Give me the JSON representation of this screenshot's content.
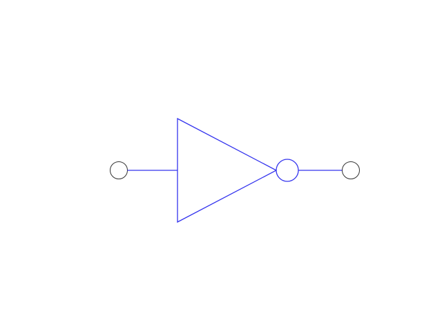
{
  "diagram": {
    "type": "logic-gate",
    "gate": "NOT",
    "components": [
      {
        "id": "input-terminal",
        "kind": "terminal"
      },
      {
        "id": "input-wire",
        "kind": "wire"
      },
      {
        "id": "inverter-triangle",
        "kind": "buffer-body"
      },
      {
        "id": "inversion-bubble",
        "kind": "inverter-bubble"
      },
      {
        "id": "output-wire",
        "kind": "wire"
      },
      {
        "id": "output-terminal",
        "kind": "terminal"
      }
    ],
    "colors": {
      "gate": "#3333ee",
      "terminal": "#333333",
      "background": "#ffffff"
    }
  }
}
